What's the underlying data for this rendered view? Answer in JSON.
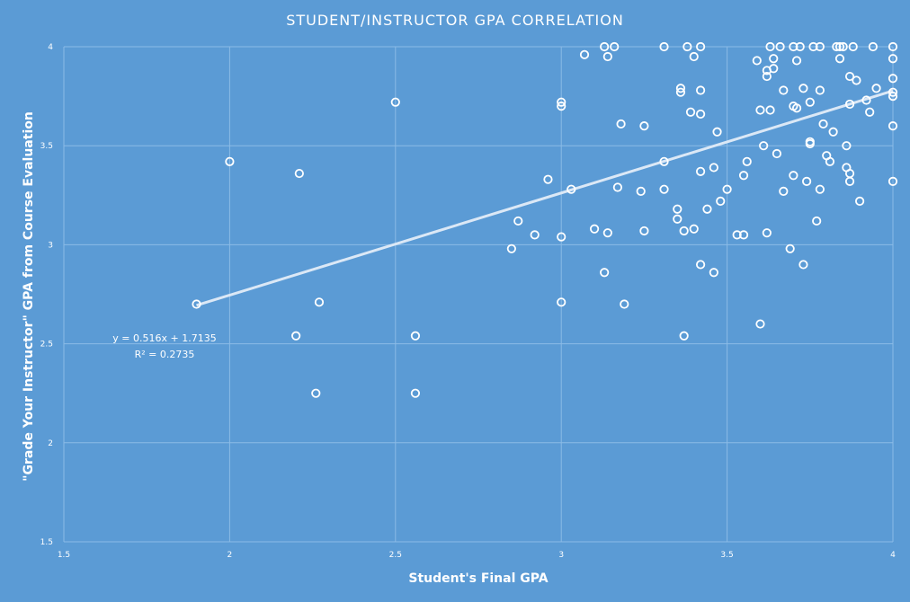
{
  "chart_data": {
    "type": "scatter",
    "title": "STUDENT/INSTRUCTOR  GPA CORRELATION",
    "xlabel": "Student's Final GPA",
    "ylabel": "\"Grade Your Instructor\" GPA from Course Evaluation",
    "xlim": [
      1.5,
      4
    ],
    "ylim": [
      1.5,
      4
    ],
    "x_ticks": [
      "1.5",
      "2",
      "2.5",
      "3",
      "3.5",
      "4"
    ],
    "y_ticks": [
      "1.5",
      "2",
      "2.5",
      "3",
      "3.5",
      "4"
    ],
    "grid": true,
    "legend": "none",
    "colors": {
      "background": "#5b9bd5",
      "marker": "#ffffff",
      "trendline": "#dbe8f6",
      "grid": "#8bbbe6"
    },
    "trendline": {
      "type": "linear",
      "slope": 0.516,
      "intercept": 1.7135,
      "x_range": [
        1.9,
        4
      ],
      "equation": "y = 0.516x + 1.7135",
      "r_squared": "R² = 0.2735"
    },
    "points": [
      [
        1.9,
        2.7
      ],
      [
        2.0,
        3.42
      ],
      [
        2.21,
        3.36
      ],
      [
        2.2,
        2.54
      ],
      [
        2.26,
        2.25
      ],
      [
        2.27,
        2.71
      ],
      [
        2.5,
        3.72
      ],
      [
        2.56,
        2.54
      ],
      [
        2.56,
        2.25
      ],
      [
        2.85,
        2.98
      ],
      [
        2.87,
        3.12
      ],
      [
        2.92,
        3.05
      ],
      [
        2.96,
        3.33
      ],
      [
        3.0,
        3.72
      ],
      [
        3.0,
        3.7
      ],
      [
        3.0,
        3.04
      ],
      [
        3.0,
        2.71
      ],
      [
        3.03,
        3.28
      ],
      [
        3.07,
        3.96
      ],
      [
        3.1,
        3.08
      ],
      [
        3.13,
        4.0
      ],
      [
        3.14,
        3.95
      ],
      [
        3.16,
        4.0
      ],
      [
        3.13,
        2.86
      ],
      [
        3.14,
        3.06
      ],
      [
        3.17,
        3.29
      ],
      [
        3.18,
        3.61
      ],
      [
        3.19,
        2.7
      ],
      [
        3.24,
        3.27
      ],
      [
        3.25,
        3.07
      ],
      [
        3.25,
        3.6
      ],
      [
        3.31,
        4.0
      ],
      [
        3.31,
        3.42
      ],
      [
        3.31,
        3.28
      ],
      [
        3.35,
        3.18
      ],
      [
        3.35,
        3.13
      ],
      [
        3.36,
        3.77
      ],
      [
        3.36,
        3.79
      ],
      [
        3.37,
        3.07
      ],
      [
        3.37,
        2.54
      ],
      [
        3.38,
        4.0
      ],
      [
        3.39,
        3.67
      ],
      [
        3.4,
        3.95
      ],
      [
        3.4,
        3.08
      ],
      [
        3.42,
        4.0
      ],
      [
        3.42,
        3.78
      ],
      [
        3.42,
        3.66
      ],
      [
        3.42,
        3.37
      ],
      [
        3.42,
        2.9
      ],
      [
        3.44,
        3.18
      ],
      [
        3.46,
        3.39
      ],
      [
        3.46,
        2.86
      ],
      [
        3.47,
        3.57
      ],
      [
        3.48,
        3.22
      ],
      [
        3.5,
        3.28
      ],
      [
        3.53,
        3.05
      ],
      [
        3.55,
        3.35
      ],
      [
        3.55,
        3.05
      ],
      [
        3.56,
        3.42
      ],
      [
        3.59,
        3.93
      ],
      [
        3.6,
        3.68
      ],
      [
        3.6,
        2.6
      ],
      [
        3.61,
        3.5
      ],
      [
        3.62,
        3.88
      ],
      [
        3.62,
        3.85
      ],
      [
        3.62,
        3.06
      ],
      [
        3.63,
        4.0
      ],
      [
        3.63,
        3.68
      ],
      [
        3.64,
        3.89
      ],
      [
        3.64,
        3.94
      ],
      [
        3.65,
        3.46
      ],
      [
        3.66,
        4.0
      ],
      [
        3.67,
        3.78
      ],
      [
        3.67,
        3.27
      ],
      [
        3.69,
        2.98
      ],
      [
        3.7,
        4.0
      ],
      [
        3.7,
        3.7
      ],
      [
        3.7,
        3.35
      ],
      [
        3.71,
        3.69
      ],
      [
        3.71,
        3.93
      ],
      [
        3.72,
        4.0
      ],
      [
        3.73,
        3.79
      ],
      [
        3.73,
        2.9
      ],
      [
        3.74,
        3.32
      ],
      [
        3.75,
        3.72
      ],
      [
        3.75,
        3.52
      ],
      [
        3.75,
        3.51
      ],
      [
        3.76,
        4.0
      ],
      [
        3.77,
        3.12
      ],
      [
        3.78,
        4.0
      ],
      [
        3.78,
        3.28
      ],
      [
        3.78,
        3.78
      ],
      [
        3.79,
        3.61
      ],
      [
        3.8,
        3.45
      ],
      [
        3.81,
        3.42
      ],
      [
        3.82,
        3.57
      ],
      [
        3.83,
        4.0
      ],
      [
        3.84,
        4.0
      ],
      [
        3.84,
        3.94
      ],
      [
        3.85,
        4.0
      ],
      [
        3.86,
        3.5
      ],
      [
        3.86,
        3.39
      ],
      [
        3.87,
        3.85
      ],
      [
        3.87,
        3.71
      ],
      [
        3.87,
        3.36
      ],
      [
        3.87,
        3.32
      ],
      [
        3.88,
        4.0
      ],
      [
        3.89,
        3.83
      ],
      [
        3.9,
        3.22
      ],
      [
        3.92,
        3.73
      ],
      [
        3.93,
        3.67
      ],
      [
        3.94,
        4.0
      ],
      [
        3.95,
        3.79
      ],
      [
        4.0,
        4.0
      ],
      [
        4.0,
        3.94
      ],
      [
        4.0,
        3.84
      ],
      [
        4.0,
        3.77
      ],
      [
        4.0,
        3.75
      ],
      [
        4.0,
        3.6
      ],
      [
        4.0,
        3.32
      ]
    ]
  }
}
